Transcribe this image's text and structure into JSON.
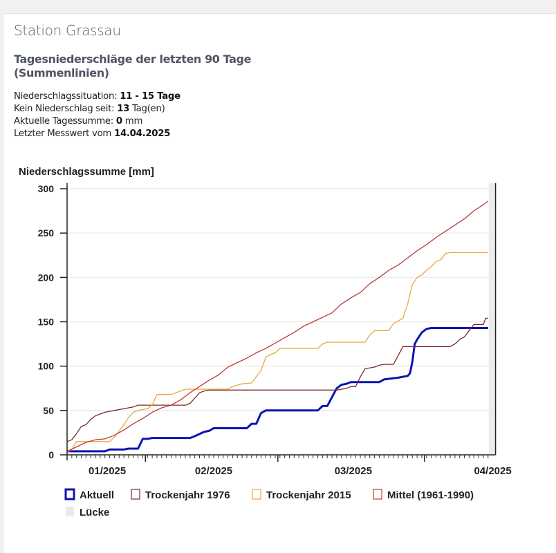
{
  "station": {
    "title": "Station Grassau"
  },
  "header": {
    "subtitle_line1": "Tagesniederschläge der letzten 90 Tage",
    "subtitle_line2": "(Summenlinien)"
  },
  "info": {
    "situation_label": "Niederschlagssituation:",
    "situation_value": "11 - 15 Tage",
    "no_rain_label": "Kein Niederschlag seit:",
    "no_rain_value": "13",
    "no_rain_unit": "Tag(en)",
    "daily_sum_label": "Aktuelle Tagessumme:",
    "daily_sum_value": "0",
    "daily_sum_unit": "mm",
    "last_value_label": "Letzter Messwert vom",
    "last_value_date": "14.04.2025"
  },
  "chart_data": {
    "type": "line",
    "title": "",
    "ylabel": "Niederschlagssumme [mm]",
    "xlabel": "",
    "ylim": [
      0,
      300
    ],
    "yticks": [
      0,
      50,
      100,
      150,
      200,
      250,
      300
    ],
    "grid": true,
    "x_unit": "day index (0 = 15.01.2025, 89 = 14.04.2025)",
    "x_range_days": [
      0,
      90
    ],
    "month_boundaries_day": [
      17,
      45,
      76
    ],
    "month_labels": [
      {
        "label": "01/2025",
        "day": 8.5
      },
      {
        "label": "02/2025",
        "day": 31
      },
      {
        "label": "03/2025",
        "day": 60.5
      },
      {
        "label": "04/2025",
        "day": 90
      }
    ],
    "gap_band_days": [
      89,
      90
    ],
    "legend_position": "bottom-left",
    "series": [
      {
        "name": "Aktuell",
        "color": "#0a14b4",
        "points": [
          [
            0,
            4
          ],
          [
            8,
            4
          ],
          [
            9,
            6
          ],
          [
            12,
            6
          ],
          [
            13,
            7
          ],
          [
            15,
            7
          ],
          [
            16,
            18
          ],
          [
            17,
            18
          ],
          [
            18,
            19
          ],
          [
            26,
            19
          ],
          [
            27,
            21
          ],
          [
            29,
            26
          ],
          [
            30,
            27
          ],
          [
            31,
            30
          ],
          [
            38,
            30
          ],
          [
            39,
            35
          ],
          [
            40,
            35
          ],
          [
            41,
            47
          ],
          [
            42,
            50
          ],
          [
            53,
            50
          ],
          [
            54,
            55
          ],
          [
            55,
            55
          ],
          [
            57,
            75
          ],
          [
            58,
            79
          ],
          [
            59,
            80
          ],
          [
            60,
            82
          ],
          [
            66,
            82
          ],
          [
            67,
            85
          ],
          [
            70,
            87
          ],
          [
            72,
            89
          ],
          [
            72.5,
            92
          ],
          [
            73,
            105
          ],
          [
            73.5,
            125
          ],
          [
            74,
            130
          ],
          [
            75,
            138
          ],
          [
            76,
            142
          ],
          [
            77,
            143
          ],
          [
            89,
            143
          ]
        ]
      },
      {
        "name": "Trockenjahr 1976",
        "color": "#7b2a2a",
        "points": [
          [
            0,
            15
          ],
          [
            1,
            17
          ],
          [
            2,
            24
          ],
          [
            3,
            32
          ],
          [
            4,
            34
          ],
          [
            5,
            40
          ],
          [
            6,
            44
          ],
          [
            7,
            46
          ],
          [
            8,
            48
          ],
          [
            9,
            49
          ],
          [
            10,
            50
          ],
          [
            11,
            51
          ],
          [
            12,
            52
          ],
          [
            13,
            53
          ],
          [
            14,
            54
          ],
          [
            15,
            56
          ],
          [
            25,
            56
          ],
          [
            26,
            58
          ],
          [
            27,
            64
          ],
          [
            28,
            70
          ],
          [
            29,
            72
          ],
          [
            30,
            73
          ],
          [
            57,
            73
          ],
          [
            59,
            75
          ],
          [
            60,
            77
          ],
          [
            61,
            77
          ],
          [
            62,
            88
          ],
          [
            63,
            97
          ],
          [
            65,
            99
          ],
          [
            66,
            101
          ],
          [
            67,
            102
          ],
          [
            69,
            102
          ],
          [
            70,
            112
          ],
          [
            71,
            122
          ],
          [
            81,
            122
          ],
          [
            82,
            125
          ],
          [
            83,
            130
          ],
          [
            84,
            133
          ],
          [
            85,
            140
          ],
          [
            86,
            147
          ],
          [
            88,
            147
          ],
          [
            88.5,
            154
          ],
          [
            89,
            154
          ]
        ]
      },
      {
        "name": "Trockenjahr 2015",
        "color": "#e8a836",
        "points": [
          [
            0,
            3
          ],
          [
            1,
            6
          ],
          [
            2,
            15
          ],
          [
            8,
            15
          ],
          [
            9,
            15
          ],
          [
            10,
            20
          ],
          [
            11,
            27
          ],
          [
            12,
            34
          ],
          [
            13,
            42
          ],
          [
            14,
            48
          ],
          [
            15,
            50
          ],
          [
            16,
            51
          ],
          [
            17,
            52
          ],
          [
            18,
            56
          ],
          [
            19,
            68
          ],
          [
            22,
            68
          ],
          [
            23,
            70
          ],
          [
            25,
            74
          ],
          [
            34,
            74
          ],
          [
            35,
            77
          ],
          [
            37,
            80
          ],
          [
            39,
            81
          ],
          [
            40,
            88
          ],
          [
            41,
            95
          ],
          [
            42,
            110
          ],
          [
            43,
            113
          ],
          [
            44,
            115
          ],
          [
            45,
            120
          ],
          [
            53,
            120
          ],
          [
            54,
            125
          ],
          [
            55,
            127
          ],
          [
            63,
            127
          ],
          [
            64,
            135
          ],
          [
            65,
            140
          ],
          [
            68,
            140
          ],
          [
            69,
            148
          ],
          [
            71,
            154
          ],
          [
            72,
            170
          ],
          [
            73,
            192
          ],
          [
            74,
            200
          ],
          [
            75,
            203
          ],
          [
            76,
            208
          ],
          [
            77,
            212
          ],
          [
            78,
            218
          ],
          [
            79,
            220
          ],
          [
            80,
            227
          ],
          [
            81,
            228
          ],
          [
            89,
            228
          ]
        ]
      },
      {
        "name": "Mittel (1961-1990)",
        "color": "#c0393a",
        "points": [
          [
            0,
            4
          ],
          [
            2,
            9
          ],
          [
            4,
            14
          ],
          [
            6,
            17
          ],
          [
            8,
            18
          ],
          [
            10,
            22
          ],
          [
            12,
            28
          ],
          [
            14,
            35
          ],
          [
            16,
            41
          ],
          [
            18,
            48
          ],
          [
            20,
            53
          ],
          [
            22,
            56
          ],
          [
            24,
            62
          ],
          [
            26,
            70
          ],
          [
            28,
            77
          ],
          [
            30,
            84
          ],
          [
            32,
            90
          ],
          [
            34,
            99
          ],
          [
            36,
            104
          ],
          [
            38,
            109
          ],
          [
            40,
            115
          ],
          [
            42,
            120
          ],
          [
            44,
            126
          ],
          [
            46,
            132
          ],
          [
            48,
            138
          ],
          [
            50,
            145
          ],
          [
            52,
            150
          ],
          [
            54,
            155
          ],
          [
            56,
            160
          ],
          [
            58,
            170
          ],
          [
            60,
            177
          ],
          [
            62,
            183
          ],
          [
            64,
            193
          ],
          [
            66,
            200
          ],
          [
            68,
            208
          ],
          [
            70,
            214
          ],
          [
            72,
            222
          ],
          [
            74,
            230
          ],
          [
            76,
            237
          ],
          [
            78,
            245
          ],
          [
            80,
            252
          ],
          [
            82,
            259
          ],
          [
            84,
            266
          ],
          [
            86,
            275
          ],
          [
            88,
            282
          ],
          [
            89,
            286
          ]
        ]
      }
    ],
    "legend": [
      {
        "label": "Aktuell",
        "color": "#0a14b4",
        "type": "line"
      },
      {
        "label": "Trockenjahr 1976",
        "color": "#7b2a2a",
        "type": "line"
      },
      {
        "label": "Trockenjahr 2015",
        "color": "#e8a836",
        "type": "line"
      },
      {
        "label": "Mittel (1961-1990)",
        "color": "#c0393a",
        "type": "line"
      },
      {
        "label": "Lücke",
        "color": "#ebebeb",
        "type": "fill"
      }
    ]
  }
}
